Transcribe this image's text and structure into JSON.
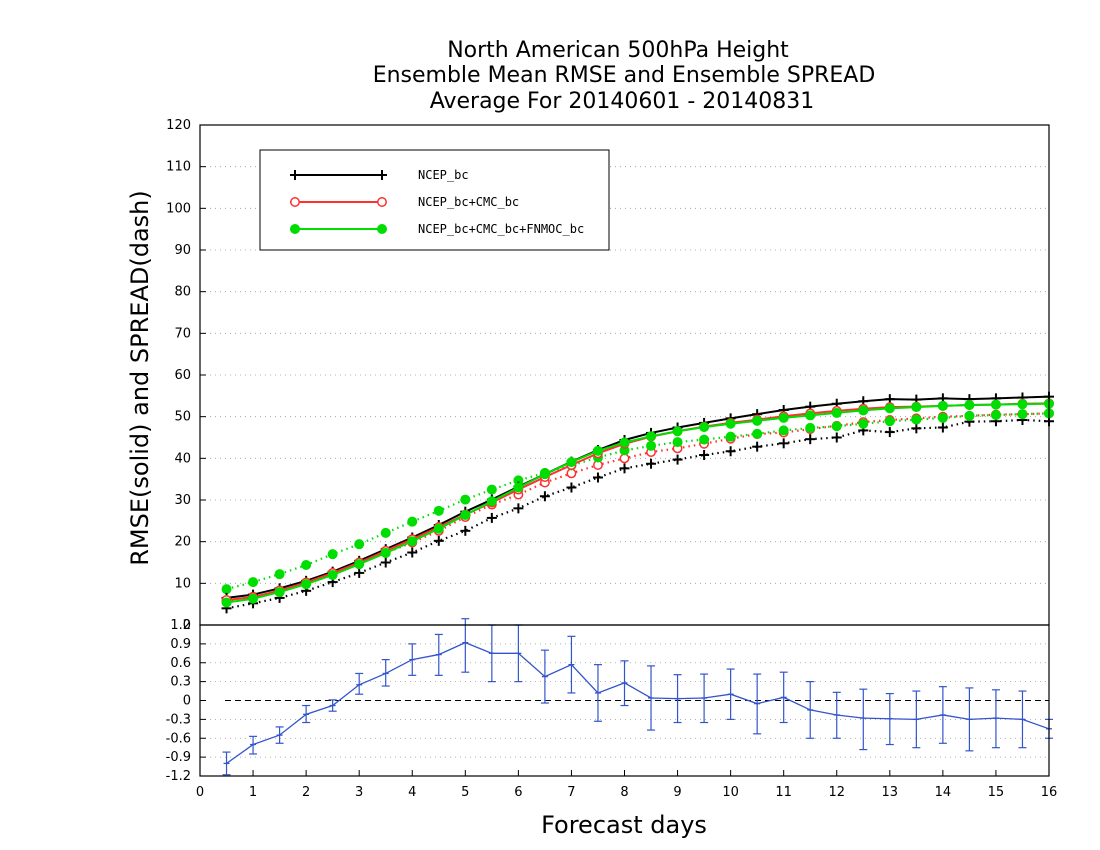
{
  "chart_data": [
    {
      "type": "line",
      "title": [
        "North American 500hPa Height",
        "Ensemble Mean RMSE and Ensemble SPREAD",
        "Average For 20140601 - 20140831"
      ],
      "ylabel": "RMSE(solid) and SPREAD(dash)",
      "xlabel": "Forecast days",
      "xlim": [
        0,
        16
      ],
      "ylim": [
        0,
        120
      ],
      "yticks": [
        "120",
        "110",
        "100",
        "90",
        "80",
        "70",
        "60",
        "50",
        "40",
        "30",
        "20",
        "10",
        "0"
      ],
      "grid": "dotted horizontal",
      "legend_position": "top-left",
      "x": [
        0.5,
        1,
        1.5,
        2,
        2.5,
        3,
        3.5,
        4,
        4.5,
        5,
        5.5,
        6,
        6.5,
        7,
        7.5,
        8,
        8.5,
        9,
        9.5,
        10,
        10.5,
        11,
        11.5,
        12,
        12.5,
        13,
        13.5,
        14,
        14.5,
        15,
        15.5,
        16
      ],
      "series": [
        {
          "name": "NCEP_bc",
          "color": "#000000",
          "marker": "plus",
          "kind": "rmse",
          "values": [
            6.5,
            7.3,
            8.8,
            10.6,
            12.8,
            15.4,
            18.2,
            21.0,
            24.0,
            27.2,
            30.1,
            33.2,
            36.2,
            39.2,
            42.0,
            44.4,
            46.1,
            47.4,
            48.5,
            49.6,
            50.6,
            51.6,
            52.4,
            53.1,
            53.7,
            54.2,
            54.1,
            54.4,
            54.2,
            54.4,
            54.6,
            54.8
          ]
        },
        {
          "name": "NCEP_bc+CMC_bc",
          "color": "#ff3030",
          "marker": "open-circle",
          "kind": "rmse",
          "values": [
            6.0,
            6.7,
            8.3,
            10.2,
            12.5,
            15.0,
            17.8,
            20.6,
            23.5,
            26.5,
            29.4,
            32.5,
            35.5,
            38.4,
            41.2,
            43.5,
            45.2,
            46.5,
            47.6,
            48.5,
            49.3,
            50.1,
            50.8,
            51.4,
            51.9,
            52.3,
            52.4,
            52.6,
            52.8,
            52.9,
            53.1,
            53.2
          ]
        },
        {
          "name": "NCEP_bc+CMC_bc+FNMOC_bc",
          "color": "#00dd00",
          "marker": "filled-circle",
          "kind": "rmse",
          "values": [
            5.4,
            6.3,
            7.9,
            9.8,
            12.0,
            14.6,
            17.3,
            20.1,
            23.1,
            26.4,
            29.7,
            33.0,
            36.2,
            39.1,
            41.8,
            43.8,
            45.3,
            46.5,
            47.5,
            48.3,
            49.0,
            49.7,
            50.3,
            50.9,
            51.5,
            52.0,
            52.3,
            52.6,
            52.8,
            52.9,
            53.0,
            53.1
          ]
        },
        {
          "name": "NCEP_bc spread",
          "color": "#000000",
          "marker": "plus",
          "kind": "spread",
          "values": [
            4.0,
            5.2,
            6.5,
            8.2,
            10.3,
            12.5,
            15.0,
            17.4,
            20.2,
            22.6,
            25.7,
            28.0,
            30.9,
            33.0,
            35.4,
            37.6,
            38.7,
            39.7,
            40.8,
            41.7,
            42.8,
            43.6,
            44.6,
            45.0,
            46.7,
            46.3,
            47.2,
            47.4,
            48.8,
            48.9,
            49.2,
            48.9
          ]
        },
        {
          "name": "NCEP_bc+CMC_bc spread",
          "color": "#ff3030",
          "marker": "open-circle",
          "kind": "spread",
          "values": [
            5.7,
            6.8,
            7.9,
            10.0,
            12.1,
            14.8,
            17.3,
            19.8,
            22.6,
            25.9,
            28.9,
            31.3,
            34.2,
            36.4,
            38.4,
            40.0,
            41.5,
            42.4,
            43.5,
            44.7,
            45.8,
            46.2,
            47.0,
            47.8,
            48.7,
            49.2,
            49.6,
            50.0,
            50.2,
            50.5,
            50.6,
            50.8
          ]
        },
        {
          "name": "NCEP_bc+CMC_bc+FNMOC_bc spread",
          "color": "#00dd00",
          "marker": "filled-circle",
          "kind": "spread",
          "values": [
            8.6,
            10.3,
            12.2,
            14.4,
            17.0,
            19.4,
            22.1,
            24.8,
            27.4,
            30.1,
            32.5,
            34.7,
            36.5,
            38.3,
            40.2,
            41.9,
            43.0,
            43.9,
            44.5,
            45.2,
            45.9,
            46.7,
            47.3,
            47.7,
            48.3,
            48.9,
            49.3,
            49.7,
            50.2,
            50.4,
            50.6,
            50.8
          ]
        }
      ]
    },
    {
      "type": "line",
      "xlim": [
        0,
        16
      ],
      "ylim": [
        -1.2,
        1.2
      ],
      "yticks": [
        "1.2",
        "0.9",
        "0.6",
        "0.3",
        "0",
        "-0.3",
        "-0.6",
        "-0.9",
        "-1.2"
      ],
      "xticks": [
        "0",
        "1",
        "2",
        "3",
        "4",
        "5",
        "6",
        "7",
        "8",
        "9",
        "10",
        "11",
        "12",
        "13",
        "14",
        "15",
        "16"
      ],
      "grid": "dotted horizontal",
      "reference_line": 0,
      "x": [
        0.5,
        1,
        1.5,
        2,
        2.5,
        3,
        3.5,
        4,
        4.5,
        5,
        5.5,
        6,
        6.5,
        7,
        7.5,
        8,
        8.5,
        9,
        9.5,
        10,
        10.5,
        11,
        11.5,
        12,
        12.5,
        13,
        13.5,
        14,
        14.5,
        15,
        15.5,
        16
      ],
      "series": [
        {
          "color": "#3355cc",
          "values": [
            -1.0,
            -0.7,
            -0.55,
            -0.22,
            -0.08,
            0.25,
            0.43,
            0.65,
            0.73,
            0.92,
            0.75,
            0.75,
            0.38,
            0.57,
            0.12,
            0.28,
            0.04,
            0.03,
            0.04,
            0.1,
            -0.05,
            0.05,
            -0.15,
            -0.23,
            -0.28,
            -0.29,
            -0.3,
            -0.23,
            -0.3,
            -0.28,
            -0.3,
            -0.45
          ],
          "error_low": [
            -1.18,
            -0.85,
            -0.68,
            -0.35,
            -0.17,
            0.1,
            0.23,
            0.4,
            0.4,
            0.45,
            0.3,
            0.3,
            -0.04,
            0.12,
            -0.33,
            -0.08,
            -0.47,
            -0.35,
            -0.35,
            -0.3,
            -0.53,
            -0.35,
            -0.6,
            -0.6,
            -0.78,
            -0.7,
            -0.75,
            -0.68,
            -0.8,
            -0.75,
            -0.75,
            -0.6
          ],
          "error_high": [
            -0.82,
            -0.57,
            -0.42,
            -0.08,
            0.01,
            0.43,
            0.65,
            0.9,
            1.05,
            1.3,
            1.2,
            1.2,
            0.8,
            1.02,
            0.57,
            0.63,
            0.55,
            0.41,
            0.42,
            0.5,
            0.42,
            0.45,
            0.3,
            0.13,
            0.18,
            0.11,
            0.15,
            0.22,
            0.2,
            0.17,
            0.15,
            -0.3
          ]
        }
      ]
    }
  ]
}
